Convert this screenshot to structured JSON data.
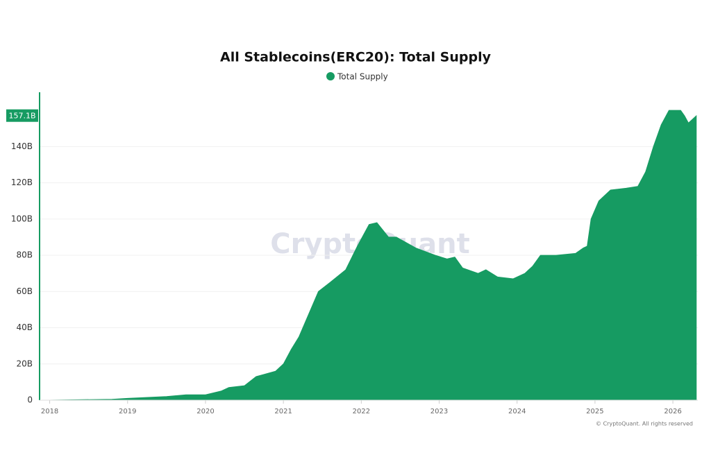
{
  "chart_data": {
    "type": "area",
    "title": "All Stablecoins(ERC20): Total Supply",
    "watermark": "CryptoQuant",
    "credit": "© CryptoQuant. All rights reserved",
    "x": [
      2018.0,
      2018.8,
      2019.0,
      2019.5,
      2019.75,
      2020.0,
      2020.2,
      2020.3,
      2020.5,
      2020.65,
      2020.9,
      2021.0,
      2021.1,
      2021.2,
      2021.3,
      2021.45,
      2021.6,
      2021.8,
      2021.95,
      2022.1,
      2022.2,
      2022.35,
      2022.45,
      2022.7,
      2022.95,
      2023.1,
      2023.2,
      2023.3,
      2023.5,
      2023.6,
      2023.75,
      2023.95,
      2024.1,
      2024.2,
      2024.3,
      2024.5,
      2024.75,
      2024.85,
      2024.9,
      2024.95,
      2025.05,
      2025.2,
      2025.4,
      2025.55,
      2025.65,
      2025.75,
      2025.85,
      2025.95,
      2026.1,
      2026.15,
      2026.2,
      2026.3
    ],
    "series": [
      {
        "name": "Total Supply",
        "color": "#169b62",
        "values": [
          0,
          0.5,
          1,
          2,
          3,
          3,
          5,
          7,
          8,
          13,
          16,
          20,
          28,
          35,
          45,
          60,
          65,
          72,
          85,
          97,
          98,
          90,
          90,
          84,
          80,
          78,
          79,
          73,
          70,
          72,
          68,
          67,
          70,
          74,
          80,
          80,
          81,
          84,
          85,
          100,
          110,
          116,
          117,
          118,
          126,
          140,
          152,
          160,
          160,
          157,
          153,
          157
        ]
      }
    ],
    "current_value": 157.1,
    "current_value_label": "157.1B",
    "xlim": [
      2017.87,
      2026.32
    ],
    "xticks": [
      2018,
      2019,
      2020,
      2021,
      2022,
      2023,
      2024,
      2025,
      2026
    ],
    "ylim": [
      0,
      170
    ],
    "yticks": [
      0,
      {
        "value": 20,
        "label": "20B"
      },
      {
        "value": 40,
        "label": "40B"
      },
      {
        "value": 60,
        "label": "60B"
      },
      {
        "value": 80,
        "label": "80B"
      },
      {
        "value": 100,
        "label": "100B"
      },
      {
        "value": 120,
        "label": "120B"
      },
      {
        "value": 140,
        "label": "140B"
      }
    ],
    "grid": true
  }
}
